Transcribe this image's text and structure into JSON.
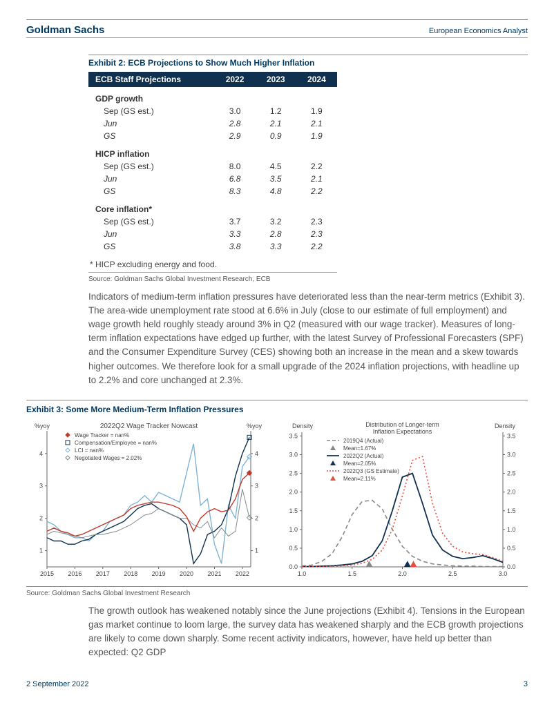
{
  "header": {
    "brand": "Goldman Sachs",
    "doc_type": "European Economics Analyst"
  },
  "exhibit2": {
    "title": "Exhibit 2: ECB Projections to Show Much Higher Inflation",
    "header_bg": "#10304f",
    "columns": [
      "ECB Staff Projections",
      "2022",
      "2023",
      "2024"
    ],
    "sections": [
      {
        "name": "GDP growth",
        "rows": [
          {
            "label": "Sep (GS est.)",
            "vals": [
              "3.0",
              "1.2",
              "1.9"
            ],
            "italic": false
          },
          {
            "label": "Jun",
            "vals": [
              "2.8",
              "2.1",
              "2.1"
            ],
            "italic": true
          },
          {
            "label": "GS",
            "vals": [
              "2.9",
              "0.9",
              "1.9"
            ],
            "italic": true
          }
        ]
      },
      {
        "name": "HICP inflation",
        "rows": [
          {
            "label": "Sep (GS est.)",
            "vals": [
              "8.0",
              "4.5",
              "2.2"
            ],
            "italic": false
          },
          {
            "label": "Jun",
            "vals": [
              "6.8",
              "3.5",
              "2.1"
            ],
            "italic": true
          },
          {
            "label": "GS",
            "vals": [
              "8.3",
              "4.8",
              "2.2"
            ],
            "italic": true
          }
        ]
      },
      {
        "name": "Core inflation*",
        "rows": [
          {
            "label": "Sep (GS est.)",
            "vals": [
              "3.7",
              "3.2",
              "2.3"
            ],
            "italic": false
          },
          {
            "label": "Jun",
            "vals": [
              "3.3",
              "2.8",
              "2.3"
            ],
            "italic": true
          },
          {
            "label": "GS",
            "vals": [
              "3.8",
              "3.3",
              "2.2"
            ],
            "italic": true
          }
        ]
      }
    ],
    "footnote": "* HICP excluding energy and food.",
    "source": "Source: Goldman Sachs Global Investment Research, ECB"
  },
  "para1": "Indicators of medium-term inflation pressures have deteriorated less than the near-term metrics (Exhibit 3). The area-wide unemployment rate stood at 6.6% in July (close to our estimate of full employment) and wage growth held roughly steady around 3% in Q2 (measured with our wage tracker). Measures of long-term inflation expectations have edged up further, with the latest Survey of Professional Forecasters (SPF) and the Consumer Expenditure Survey (CES) showing both an increase in the mean and a skew towards higher outcomes. We therefore look for a small upgrade of the 2024 inflation projections, with headline up to 2.2% and core unchanged at 2.3%.",
  "exhibit3": {
    "title": "Exhibit 3: Some More Medium-Term Inflation Pressures",
    "source": "Source: Goldman Sachs Global Investment Research",
    "left": {
      "type": "line",
      "title": "2022Q2 Wage Tracker Nowcast",
      "ylabel_left": "%yoy",
      "ylabel_right": "%yoy",
      "x_ticks": [
        "2015",
        "2016",
        "2017",
        "2018",
        "2019",
        "2020",
        "2021",
        "2022"
      ],
      "y_ticks": [
        1,
        2,
        3,
        4
      ],
      "ylim": [
        0.5,
        4.7
      ],
      "series": [
        {
          "name": "Wage Tracker = nan%",
          "color": "#c0392b",
          "marker": "diamond-filled",
          "width": 1.4
        },
        {
          "name": "Compensation/Employee = nan%",
          "color": "#10304f",
          "marker": "square-open",
          "width": 1.4
        },
        {
          "name": "LCI = nan%",
          "color": "#7fb3d5",
          "marker": "diamond-open",
          "width": 1.4
        },
        {
          "name": "Negotiated Wages = 2.02%",
          "color": "#7f8c8d",
          "marker": "diamond-open",
          "width": 1.0
        }
      ],
      "line_data": {
        "x": [
          2015.0,
          2015.25,
          2015.5,
          2015.75,
          2016.0,
          2016.25,
          2016.5,
          2016.75,
          2017.0,
          2017.25,
          2017.5,
          2017.75,
          2018.0,
          2018.25,
          2018.5,
          2018.75,
          2019.0,
          2019.25,
          2019.5,
          2019.75,
          2020.0,
          2020.25,
          2020.5,
          2020.75,
          2021.0,
          2021.25,
          2021.5,
          2021.75,
          2022.0,
          2022.25
        ],
        "wage_tracker": [
          1.6,
          1.7,
          1.6,
          1.55,
          1.45,
          1.5,
          1.6,
          1.7,
          1.8,
          1.9,
          2.0,
          2.1,
          2.3,
          2.4,
          2.45,
          2.5,
          2.5,
          2.45,
          2.4,
          2.3,
          2.05,
          1.6,
          2.0,
          2.2,
          2.3,
          2.2,
          2.25,
          2.6,
          3.2,
          3.4
        ],
        "comp_emp": [
          1.4,
          1.3,
          1.3,
          1.2,
          1.2,
          1.3,
          1.35,
          1.5,
          1.6,
          1.7,
          1.8,
          1.9,
          2.1,
          2.3,
          2.4,
          2.45,
          2.3,
          2.2,
          2.1,
          2.0,
          1.8,
          0.6,
          0.9,
          1.5,
          1.6,
          1.8,
          2.3,
          3.3,
          4.0,
          4.5
        ],
        "lci": [
          1.9,
          1.8,
          1.6,
          1.5,
          1.4,
          1.4,
          1.3,
          1.5,
          1.6,
          1.9,
          2.0,
          2.1,
          2.4,
          2.5,
          2.7,
          2.5,
          2.8,
          2.7,
          2.6,
          2.5,
          3.4,
          4.3,
          2.4,
          2.6,
          1.2,
          0.6,
          2.4,
          2.0,
          3.6,
          3.9
        ],
        "negotiated": [
          1.5,
          1.6,
          1.55,
          1.5,
          1.45,
          1.4,
          1.45,
          1.5,
          1.5,
          1.55,
          1.6,
          1.7,
          1.8,
          1.95,
          2.1,
          2.15,
          2.3,
          2.2,
          2.1,
          2.0,
          2.0,
          1.8,
          1.7,
          1.9,
          1.4,
          1.7,
          1.45,
          1.6,
          2.9,
          2.02
        ]
      }
    },
    "right": {
      "type": "density",
      "title": "Distribution of Longer-term Inflation Expectations",
      "ylabel_left": "Density",
      "ylabel_right": "Density",
      "xlim": [
        1.0,
        3.0
      ],
      "x_ticks": [
        "1.0",
        "1.5",
        "2.0",
        "2.5",
        "3.0"
      ],
      "y_ticks": [
        "0.0",
        "0.5",
        "1.0",
        "1.5",
        "2.0",
        "2.5",
        "3.0",
        "3.5"
      ],
      "ylim": [
        0.0,
        3.6
      ],
      "legend": [
        {
          "label": "2019Q4 (Actual)",
          "style": "dash",
          "color": "#888888"
        },
        {
          "label": "Mean=1.67%",
          "style": "triangle",
          "color": "#888888"
        },
        {
          "label": "2022Q2 (Actual)",
          "style": "solid",
          "color": "#10304f"
        },
        {
          "label": "Mean=2.05%",
          "style": "triangle",
          "color": "#10304f"
        },
        {
          "label": "2022Q3 (GS Estimate)",
          "style": "dot",
          "color": "#e74c3c"
        },
        {
          "label": "Mean=2.11%",
          "style": "triangle",
          "color": "#e74c3c"
        }
      ],
      "density_x": [
        1.0,
        1.1,
        1.2,
        1.3,
        1.4,
        1.5,
        1.6,
        1.7,
        1.8,
        1.9,
        2.0,
        2.1,
        2.2,
        2.3,
        2.4,
        2.5,
        2.6,
        2.7,
        2.8,
        2.9,
        3.0
      ],
      "s_2019q4": [
        0.02,
        0.05,
        0.15,
        0.35,
        0.8,
        1.4,
        1.75,
        1.78,
        1.55,
        1.0,
        0.55,
        0.28,
        0.15,
        0.08,
        0.05,
        0.03,
        0.02,
        0.02,
        0.01,
        0.01,
        0.01
      ],
      "s_2022q2": [
        0.01,
        0.01,
        0.02,
        0.03,
        0.05,
        0.08,
        0.15,
        0.3,
        0.7,
        1.5,
        2.4,
        2.5,
        1.7,
        0.85,
        0.45,
        0.28,
        0.22,
        0.25,
        0.3,
        0.22,
        0.12
      ],
      "s_2022q3": [
        0.01,
        0.01,
        0.01,
        0.02,
        0.03,
        0.05,
        0.1,
        0.2,
        0.45,
        1.0,
        1.9,
        2.85,
        2.95,
        1.7,
        0.9,
        0.55,
        0.4,
        0.35,
        0.33,
        0.25,
        0.15
      ],
      "mean_markers": [
        {
          "x": 1.67,
          "color": "#888888"
        },
        {
          "x": 2.05,
          "color": "#10304f"
        },
        {
          "x": 2.11,
          "color": "#e74c3c"
        }
      ]
    }
  },
  "para2": "The growth outlook has weakened notably since the June projections (Exhibit 4). Tensions in the European gas market continue to loom large, the survey data has weakened sharply and the ECB growth projections are likely to come down sharply. Some recent activity indicators, however, have held up better than expected: Q2 GDP",
  "footer": {
    "date": "2 September 2022",
    "page": "3",
    "color": "#003a63"
  }
}
